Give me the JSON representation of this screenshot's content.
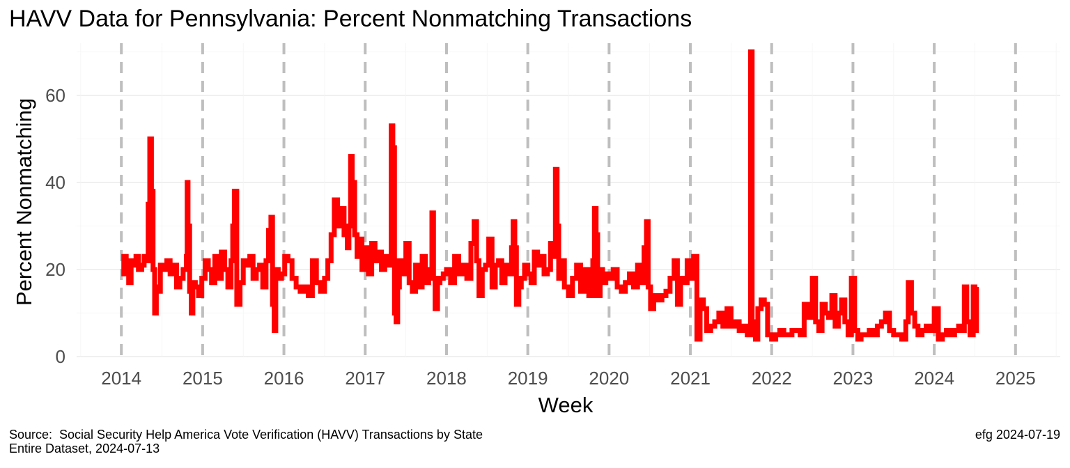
{
  "chart_data": {
    "type": "line",
    "title": "HAVV Data for Pennsylvania:  Percent Nonmatching Transactions",
    "xlabel": "Week",
    "ylabel": "Percent Nonmatching",
    "caption_left_line1": "Source:  Social Security Help America Vote Verification (HAVV) Transactions by State",
    "caption_left_line2": "Entire Dataset, 2024-07-13",
    "caption_right": "efg 2024-07-19",
    "x_ticks": [
      "2014",
      "2015",
      "2016",
      "2017",
      "2018",
      "2019",
      "2020",
      "2021",
      "2022",
      "2023",
      "2024",
      "2025"
    ],
    "y_ticks": [
      "0",
      "20",
      "40",
      "60"
    ],
    "xlim": [
      2013.45,
      2025.55
    ],
    "ylim": [
      0,
      72
    ],
    "year_lines": [
      2014,
      2015,
      2016,
      2017,
      2018,
      2019,
      2020,
      2021,
      2022,
      2023,
      2024,
      2025
    ],
    "grid": true,
    "line_color": "#ff0000",
    "year_line_color": "#bebebe",
    "series": [
      {
        "x": [
          2014.0,
          2014.03,
          2014.06,
          2014.09,
          2014.12,
          2014.15,
          2014.18,
          2014.21,
          2014.25,
          2014.28,
          2014.31,
          2014.33,
          2014.35,
          2014.37,
          2014.39,
          2014.41,
          2014.43,
          2014.45,
          2014.48,
          2014.52,
          2014.56,
          2014.6,
          2014.64,
          2014.68,
          2014.72,
          2014.76,
          2014.8,
          2014.81,
          2014.82,
          2014.84,
          2014.86,
          2014.88,
          2014.91,
          2014.95,
          2014.99,
          2015.03,
          2015.07,
          2015.11,
          2015.15,
          2015.19,
          2015.23,
          2015.27,
          2015.31,
          2015.35,
          2015.37,
          2015.39,
          2015.42,
          2015.46,
          2015.5,
          2015.54,
          2015.58,
          2015.62,
          2015.66,
          2015.7,
          2015.74,
          2015.78,
          2015.81,
          2015.84,
          2015.86,
          2015.88,
          2015.9,
          2015.93,
          2015.97,
          2016.01,
          2016.05,
          2016.1,
          2016.15,
          2016.2,
          2016.25,
          2016.3,
          2016.35,
          2016.4,
          2016.45,
          2016.5,
          2016.54,
          2016.58,
          2016.62,
          2016.66,
          2016.7,
          2016.74,
          2016.78,
          2016.8,
          2016.82,
          2016.84,
          2016.87,
          2016.9,
          2016.93,
          2016.96,
          2017.0,
          2017.04,
          2017.08,
          2017.12,
          2017.16,
          2017.2,
          2017.24,
          2017.28,
          2017.32,
          2017.34,
          2017.36,
          2017.38,
          2017.4,
          2017.42,
          2017.46,
          2017.5,
          2017.54,
          2017.58,
          2017.62,
          2017.66,
          2017.7,
          2017.74,
          2017.78,
          2017.82,
          2017.84,
          2017.86,
          2017.89,
          2017.92,
          2017.96,
          2018.0,
          2018.05,
          2018.1,
          2018.15,
          2018.2,
          2018.25,
          2018.3,
          2018.34,
          2018.37,
          2018.4,
          2018.44,
          2018.48,
          2018.52,
          2018.56,
          2018.6,
          2018.64,
          2018.68,
          2018.72,
          2018.76,
          2018.8,
          2018.82,
          2018.84,
          2018.86,
          2018.89,
          2018.92,
          2018.96,
          2019.0,
          2019.04,
          2019.08,
          2019.12,
          2019.16,
          2019.2,
          2019.24,
          2019.28,
          2019.31,
          2019.34,
          2019.36,
          2019.38,
          2019.41,
          2019.45,
          2019.5,
          2019.55,
          2019.6,
          2019.65,
          2019.7,
          2019.75,
          2019.8,
          2019.82,
          2019.84,
          2019.86,
          2019.89,
          2019.92,
          2019.96,
          2020.0,
          2020.05,
          2020.1,
          2020.15,
          2020.2,
          2020.25,
          2020.3,
          2020.35,
          2020.4,
          2020.43,
          2020.46,
          2020.48,
          2020.51,
          2020.55,
          2020.6,
          2020.65,
          2020.7,
          2020.75,
          2020.8,
          2020.84,
          2020.88,
          2020.92,
          2020.96,
          2021.0,
          2021.04,
          2021.08,
          2021.12,
          2021.16,
          2021.2,
          2021.25,
          2021.3,
          2021.35,
          2021.4,
          2021.45,
          2021.5,
          2021.55,
          2021.6,
          2021.65,
          2021.7,
          2021.74,
          2021.76,
          2021.78,
          2021.8,
          2021.83,
          2021.87,
          2021.91,
          2021.95,
          2022.0,
          2022.05,
          2022.1,
          2022.15,
          2022.2,
          2022.25,
          2022.3,
          2022.35,
          2022.4,
          2022.45,
          2022.5,
          2022.54,
          2022.58,
          2022.62,
          2022.66,
          2022.7,
          2022.74,
          2022.78,
          2022.82,
          2022.86,
          2022.9,
          2022.94,
          2022.98,
          2023.02,
          2023.06,
          2023.1,
          2023.15,
          2023.2,
          2023.25,
          2023.3,
          2023.35,
          2023.4,
          2023.45,
          2023.5,
          2023.55,
          2023.6,
          2023.65,
          2023.68,
          2023.72,
          2023.76,
          2023.8,
          2023.85,
          2023.9,
          2023.95,
          2024.0,
          2024.05,
          2024.1,
          2024.15,
          2024.2,
          2024.25,
          2024.3,
          2024.34,
          2024.37,
          2024.4,
          2024.44,
          2024.48,
          2024.5,
          2024.52
        ],
        "y": [
          19,
          23,
          22,
          17,
          22,
          21,
          23,
          20,
          21,
          23,
          22,
          35,
          50,
          38,
          20,
          10,
          16,
          15,
          21,
          20,
          22,
          19,
          21,
          16,
          18,
          20,
          23,
          40,
          30,
          15,
          10,
          17,
          16,
          14,
          18,
          22,
          20,
          17,
          23,
          18,
          24,
          20,
          16,
          22,
          30,
          38,
          12,
          17,
          22,
          21,
          23,
          18,
          20,
          21,
          16,
          22,
          29,
          32,
          12,
          6,
          20,
          18,
          19,
          23,
          22,
          18,
          16,
          15,
          16,
          14,
          22,
          17,
          15,
          18,
          22,
          28,
          36,
          30,
          34,
          28,
          25,
          30,
          46,
          40,
          28,
          23,
          27,
          20,
          25,
          19,
          26,
          22,
          24,
          20,
          23,
          21,
          53,
          48,
          10,
          8,
          16,
          22,
          19,
          26,
          17,
          15,
          21,
          16,
          23,
          17,
          20,
          33,
          18,
          11,
          17,
          18,
          19,
          20,
          17,
          23,
          19,
          21,
          18,
          26,
          31,
          22,
          14,
          20,
          21,
          27,
          16,
          21,
          22,
          17,
          21,
          19,
          25,
          31,
          25,
          12,
          16,
          18,
          21,
          19,
          17,
          24,
          21,
          23,
          19,
          20,
          26,
          23,
          43,
          30,
          18,
          22,
          16,
          14,
          18,
          21,
          15,
          20,
          14,
          22,
          34,
          28,
          14,
          20,
          17,
          19,
          18,
          20,
          16,
          15,
          17,
          19,
          16,
          21,
          17,
          25,
          31,
          16,
          11,
          14,
          13,
          14,
          15,
          18,
          22,
          12,
          18,
          17,
          22,
          18,
          23,
          4,
          13,
          11,
          6,
          7,
          8,
          10,
          7,
          11,
          7,
          8,
          6,
          7,
          5,
          70,
          8,
          5,
          4,
          11,
          13,
          12,
          5,
          4,
          5,
          6,
          5,
          5,
          6,
          6,
          5,
          12,
          9,
          18,
          8,
          6,
          12,
          10,
          9,
          14,
          7,
          10,
          13,
          8,
          5,
          18,
          6,
          4,
          5,
          5,
          6,
          5,
          7,
          8,
          10,
          6,
          5,
          5,
          4,
          8,
          17,
          10,
          7,
          5,
          6,
          7,
          6,
          11,
          4,
          5,
          6,
          5,
          6,
          7,
          6,
          16,
          8,
          5,
          16,
          6,
          16
        ]
      }
    ]
  }
}
